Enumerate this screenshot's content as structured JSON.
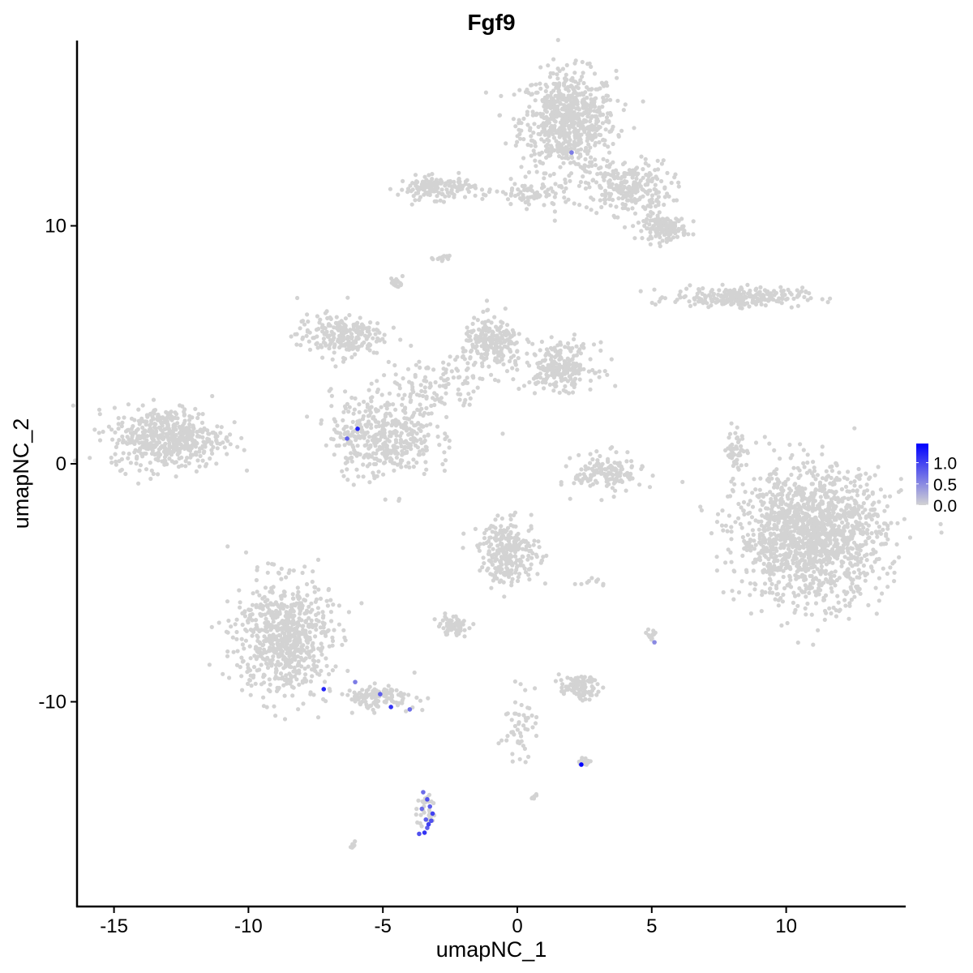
{
  "chart_data": {
    "type": "scatter",
    "title": "Fgf9",
    "xlabel": "umapNC_1",
    "ylabel": "umapNC_2",
    "xlim": [
      -16.4,
      14.45
    ],
    "ylim": [
      -18.6,
      17.8
    ],
    "xticks": [
      -15,
      -10,
      -5,
      0,
      5,
      10
    ],
    "yticks": [
      -10,
      0,
      10
    ],
    "grid": false,
    "legend": {
      "placement": "right",
      "type": "colorbar",
      "range": [
        0,
        1.45
      ],
      "ticks": [
        "0.0",
        "0.5",
        "1.0"
      ],
      "low_color": "#D3D3D3",
      "high_color": "#0000FF"
    },
    "background_point_color": "#D3D3D3",
    "clusters": [
      {
        "cx": 1.9,
        "cy": 14.4,
        "sx": 1.1,
        "sy": 1.3,
        "n": 700
      },
      {
        "cx": 4.1,
        "cy": 11.6,
        "sx": 1.0,
        "sy": 0.7,
        "n": 250
      },
      {
        "cx": 5.5,
        "cy": 9.9,
        "sx": 0.5,
        "sy": 0.3,
        "n": 150
      },
      {
        "cx": -3.0,
        "cy": 11.6,
        "sx": 0.9,
        "sy": 0.3,
        "n": 150
      },
      {
        "cx": 0.6,
        "cy": 11.3,
        "sx": 0.9,
        "sy": 0.35,
        "n": 80
      },
      {
        "cx": 8.2,
        "cy": 7.0,
        "sx": 1.5,
        "sy": 0.25,
        "n": 250
      },
      {
        "cx": -13.0,
        "cy": 1.1,
        "sx": 1.3,
        "sy": 0.8,
        "n": 500
      },
      {
        "cx": -6.6,
        "cy": 5.4,
        "sx": 1.0,
        "sy": 0.55,
        "n": 220
      },
      {
        "cx": -5.0,
        "cy": 1.2,
        "sx": 1.2,
        "sy": 1.1,
        "n": 420
      },
      {
        "cx": -0.9,
        "cy": 5.0,
        "sx": 0.7,
        "sy": 0.7,
        "n": 220
      },
      {
        "cx": 1.6,
        "cy": 4.1,
        "sx": 0.8,
        "sy": 0.6,
        "n": 230
      },
      {
        "cx": -3.0,
        "cy": 3.2,
        "sx": 1.2,
        "sy": 0.8,
        "n": 110
      },
      {
        "cx": 3.4,
        "cy": -0.4,
        "sx": 0.8,
        "sy": 0.5,
        "n": 150
      },
      {
        "cx": 10.9,
        "cy": -3.0,
        "sx": 1.7,
        "sy": 1.7,
        "n": 1500
      },
      {
        "cx": -0.3,
        "cy": -3.7,
        "sx": 0.7,
        "sy": 0.8,
        "n": 260
      },
      {
        "cx": -8.7,
        "cy": -7.3,
        "sx": 1.1,
        "sy": 1.5,
        "n": 700
      },
      {
        "cx": -5.2,
        "cy": -9.8,
        "sx": 0.9,
        "sy": 0.3,
        "n": 120
      },
      {
        "cx": -2.4,
        "cy": -6.8,
        "sx": 0.35,
        "sy": 0.25,
        "n": 70
      },
      {
        "cx": 2.3,
        "cy": -9.4,
        "sx": 0.45,
        "sy": 0.3,
        "n": 90
      },
      {
        "cx": 0.0,
        "cy": -11.0,
        "sx": 0.4,
        "sy": 0.9,
        "n": 50
      },
      {
        "cx": -3.4,
        "cy": -14.6,
        "sx": 0.2,
        "sy": 0.5,
        "n": 30
      },
      {
        "cx": 8.2,
        "cy": 0.6,
        "sx": 0.25,
        "sy": 0.6,
        "n": 50
      },
      {
        "cx": -4.5,
        "cy": 7.6,
        "sx": 0.15,
        "sy": 0.15,
        "n": 20
      },
      {
        "cx": -2.8,
        "cy": 8.7,
        "sx": 0.2,
        "sy": 0.1,
        "n": 15
      },
      {
        "cx": -6.1,
        "cy": -16.0,
        "sx": 0.1,
        "sy": 0.1,
        "n": 6
      },
      {
        "cx": 0.6,
        "cy": -14.0,
        "sx": 0.1,
        "sy": 0.1,
        "n": 6
      },
      {
        "cx": 5.0,
        "cy": -7.2,
        "sx": 0.12,
        "sy": 0.2,
        "n": 12
      },
      {
        "cx": 2.5,
        "cy": -12.5,
        "sx": 0.15,
        "sy": 0.1,
        "n": 15
      },
      {
        "cx": 2.8,
        "cy": -5.0,
        "sx": 0.3,
        "sy": 0.1,
        "n": 10
      }
    ],
    "expressed_points": [
      {
        "x": 2.02,
        "y": 13.08,
        "v": 0.6
      },
      {
        "x": -5.94,
        "y": 1.47,
        "v": 1.2
      },
      {
        "x": -6.33,
        "y": 1.06,
        "v": 0.8
      },
      {
        "x": -7.2,
        "y": -9.47,
        "v": 1.2
      },
      {
        "x": -6.03,
        "y": -9.17,
        "v": 0.6
      },
      {
        "x": -5.1,
        "y": -9.68,
        "v": 0.8
      },
      {
        "x": -4.7,
        "y": -10.22,
        "v": 1.1
      },
      {
        "x": -4.0,
        "y": -10.32,
        "v": 0.7
      },
      {
        "x": 2.38,
        "y": -12.64,
        "v": 1.45
      },
      {
        "x": 5.1,
        "y": -7.5,
        "v": 0.5
      },
      {
        "x": -3.5,
        "y": -13.8,
        "v": 0.7
      },
      {
        "x": -3.35,
        "y": -14.1,
        "v": 0.9
      },
      {
        "x": -3.25,
        "y": -14.4,
        "v": 0.8
      },
      {
        "x": -3.15,
        "y": -14.7,
        "v": 1.0
      },
      {
        "x": -3.2,
        "y": -15.0,
        "v": 0.9
      },
      {
        "x": -3.35,
        "y": -15.3,
        "v": 0.8
      },
      {
        "x": -3.45,
        "y": -15.5,
        "v": 1.1
      },
      {
        "x": -3.65,
        "y": -15.55,
        "v": 0.9
      },
      {
        "x": -3.55,
        "y": -14.5,
        "v": 0.7
      },
      {
        "x": -3.3,
        "y": -15.15,
        "v": 1.0
      },
      {
        "x": -3.4,
        "y": -14.95,
        "v": 0.8
      }
    ]
  }
}
